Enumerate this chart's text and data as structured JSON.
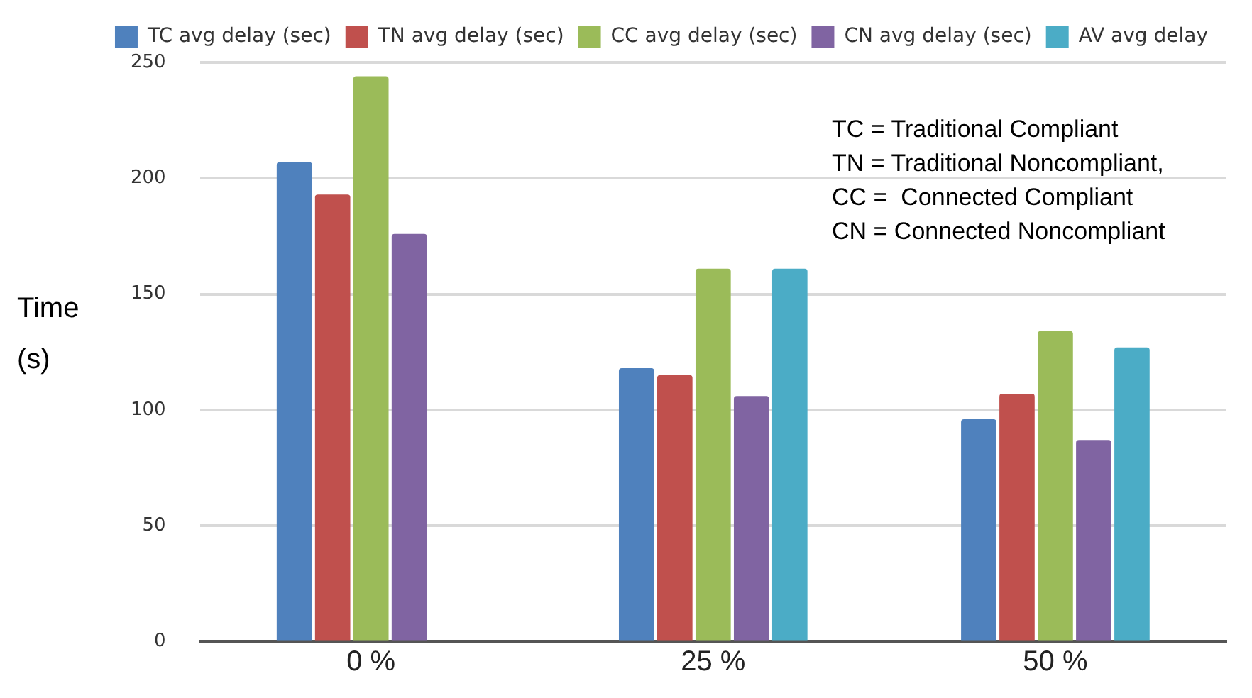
{
  "chart_data": {
    "type": "bar",
    "ylabel": "Time (s)",
    "categories": [
      "0 %",
      "25 %",
      "50 %"
    ],
    "series": [
      {
        "name": "TC avg delay (sec)",
        "color": "#4f81bd",
        "values": [
          207,
          118,
          96
        ]
      },
      {
        "name": "TN avg delay (sec)",
        "color": "#c0504d",
        "values": [
          193,
          115,
          107
        ]
      },
      {
        "name": "CC avg delay (sec)",
        "color": "#9bbb59",
        "values": [
          244,
          161,
          134
        ]
      },
      {
        "name": "CN avg delay (sec)",
        "color": "#8064a2",
        "values": [
          176,
          106,
          87
        ]
      },
      {
        "name": "AV avg delay",
        "color": "#4bacc6",
        "values": [
          null,
          161,
          127
        ]
      }
    ],
    "ylim": [
      0,
      250
    ],
    "yticks": [
      0,
      50,
      100,
      150,
      200,
      250
    ],
    "grid": "y",
    "legend": "top",
    "annotations": [
      "TC = Traditional Compliant",
      "TN = Traditional Noncompliant,",
      "CC =  Connected Compliant",
      "CN = Connected Noncompliant"
    ]
  }
}
